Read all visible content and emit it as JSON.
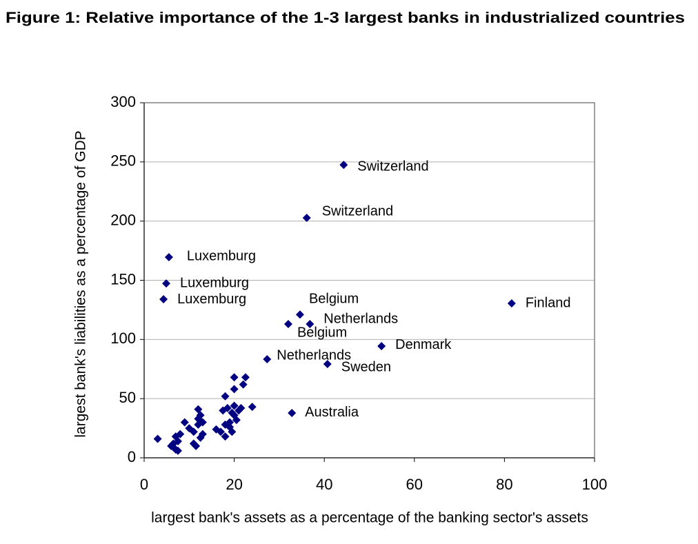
{
  "chart_data": {
    "type": "scatter",
    "title": "Figure 1: Relative importance of the 1-3 largest banks in industrialized countries",
    "xlabel": "largest bank's assets as a percentage of the banking sector's assets",
    "ylabel": "largest bank's liabilities as a percentage of  GDP",
    "color": "#000080",
    "x": [
      44.3,
      36.1,
      5.5,
      4.9,
      4.3,
      34.6,
      32,
      36.8,
      81.6,
      52.7,
      27.3,
      40.7,
      32.8,
      3,
      6,
      6.5,
      7,
      7,
      7.5,
      7.5,
      8,
      9,
      10,
      11,
      11,
      11.5,
      12,
      12,
      12,
      12.5,
      12.5,
      13,
      13,
      16,
      17,
      17.5,
      18,
      18,
      18.5,
      19,
      19,
      19.5,
      20,
      20,
      20,
      20,
      20.5,
      21,
      21.5,
      22,
      22.5,
      24,
      19.5,
      18
    ],
    "values": [
      247.5,
      202.7,
      169.5,
      147.3,
      134,
      121,
      113,
      113,
      130.5,
      94.4,
      83.3,
      79.2,
      37.9,
      16,
      10,
      12,
      18,
      7,
      14,
      6,
      20,
      30,
      25,
      22,
      12,
      10,
      41,
      33,
      28,
      36,
      17,
      30,
      20,
      24,
      22,
      40,
      18,
      52,
      42,
      30,
      26,
      22,
      68,
      44,
      58,
      36,
      32,
      40,
      42,
      62,
      68,
      43,
      38,
      28
    ],
    "point_labels": [
      "Switzerland",
      "Switzerland",
      "Luxemburg",
      "Luxemburg",
      "Luxemburg",
      "Belgium",
      "Belgium",
      "Netherlands",
      "Finland",
      "Denmark",
      "Netherlands",
      "Sweden",
      "Australia",
      null,
      null,
      null,
      null,
      null,
      null,
      null,
      null,
      null,
      null,
      null,
      null,
      null,
      null,
      null,
      null,
      null,
      null,
      null,
      null,
      null,
      null,
      null,
      null,
      null,
      null,
      null,
      null,
      null,
      null,
      null,
      null,
      null,
      null,
      null,
      null,
      null,
      null,
      null,
      null,
      null
    ],
    "xlim": [
      0,
      100
    ],
    "ylim": [
      0,
      300
    ],
    "xticks": [
      0,
      20,
      40,
      60,
      80,
      100
    ],
    "yticks": [
      0,
      50,
      100,
      150,
      200,
      250,
      300
    ],
    "grid": true
  }
}
